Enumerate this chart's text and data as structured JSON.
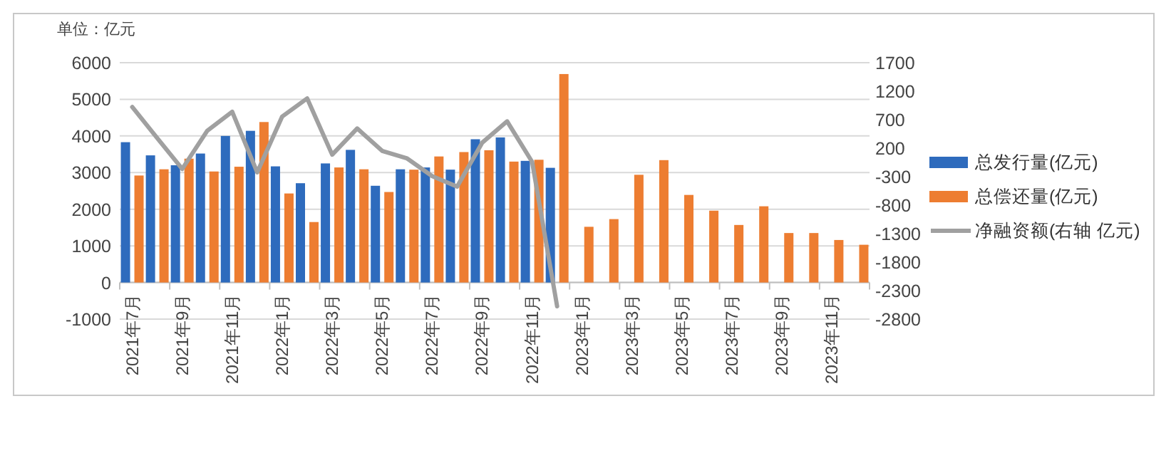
{
  "chart_data": {
    "type": "bar",
    "ylabel": "单位：亿元",
    "categories": [
      "2021年7月",
      null,
      "2021年9月",
      null,
      "2021年11月",
      null,
      "2022年1月",
      null,
      "2022年3月",
      null,
      "2022年5月",
      null,
      "2022年7月",
      null,
      "2022年9月",
      null,
      "2022年11月",
      null,
      "2023年1月",
      null,
      "2023年3月",
      null,
      "2023年5月",
      null,
      "2023年7月",
      null,
      "2023年9月",
      null,
      "2023年11月",
      null
    ],
    "series": [
      {
        "name": "总发行量(亿元)",
        "color": "#2e6bbd",
        "values": [
          3830,
          3470,
          3200,
          3520,
          4000,
          4140,
          3170,
          2710,
          3250,
          3620,
          2640,
          3090,
          3140,
          3080,
          3910,
          3960,
          3320,
          3130,
          null,
          null,
          null,
          null,
          null,
          null,
          null,
          null,
          null,
          null,
          null,
          null
        ]
      },
      {
        "name": "总偿还量(亿元)",
        "color": "#ed7d31",
        "values": [
          2920,
          3090,
          3380,
          3030,
          3160,
          4380,
          2430,
          1650,
          3140,
          3090,
          2470,
          3080,
          3440,
          3560,
          3610,
          3300,
          3350,
          5690,
          1520,
          1730,
          2940,
          3340,
          2390,
          1960,
          1570,
          2080,
          1350,
          1350,
          1160,
          1030
        ]
      },
      {
        "name": "净融资额(右轴 亿元)",
        "type": "line",
        "axis": "y2",
        "color": "#a0a0a0",
        "values": [
          922,
          378,
          -165,
          504,
          839,
          -224,
          755,
          1073,
          86,
          546,
          153,
          19,
          -291,
          -475,
          295,
          671,
          -40,
          -2574,
          null,
          null,
          null,
          null,
          null,
          null,
          null,
          null,
          null,
          null,
          null,
          null
        ]
      }
    ],
    "ylim": [
      -1000,
      6000
    ],
    "yticks": [
      -1000,
      0,
      1000,
      2000,
      3000,
      4000,
      5000,
      6000
    ],
    "y2lim": [
      -2800,
      1700
    ],
    "y2ticks": [
      -2800,
      -2300,
      -1800,
      -1300,
      -800,
      -300,
      200,
      700,
      1200,
      1700
    ],
    "grid": "y",
    "legend": "right"
  }
}
